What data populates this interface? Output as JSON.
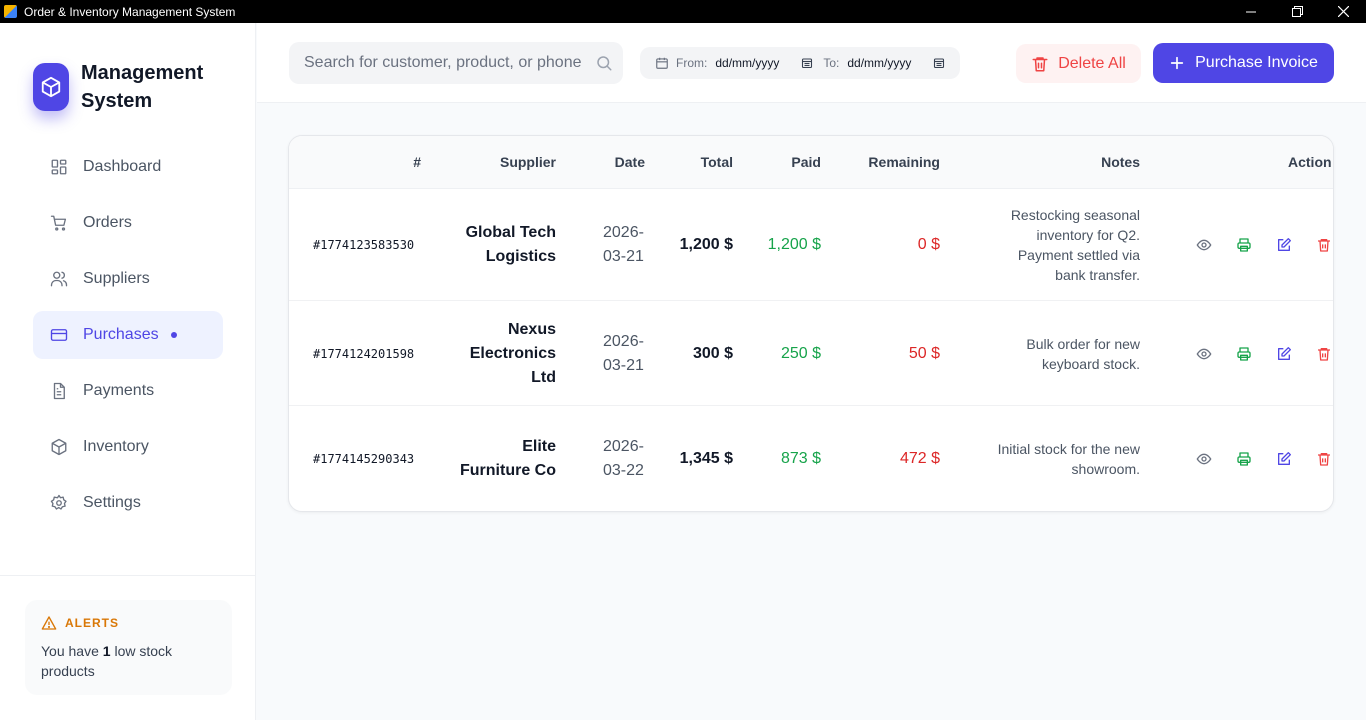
{
  "window": {
    "title": "Order & Inventory Management System"
  },
  "brand": {
    "title": "Management System"
  },
  "nav": [
    {
      "label": "Dashboard",
      "icon": "grid-icon"
    },
    {
      "label": "Orders",
      "icon": "cart-icon"
    },
    {
      "label": "Suppliers",
      "icon": "users-icon"
    },
    {
      "label": "Purchases",
      "icon": "credit-card-icon",
      "active": true
    },
    {
      "label": "Payments",
      "icon": "document-icon"
    },
    {
      "label": "Inventory",
      "icon": "box-icon"
    },
    {
      "label": "Settings",
      "icon": "gear-icon"
    }
  ],
  "alerts": {
    "heading": "ALERTS",
    "prefix": "You have",
    "count": "1",
    "suffix": "low stock products"
  },
  "search": {
    "placeholder": "Search for customer, product, or phone",
    "value": ""
  },
  "dates": {
    "from_label": "From:",
    "from_value": "dd/mm/yyyy",
    "to_label": "To:",
    "to_value": "dd/mm/yyyy"
  },
  "toolbar": {
    "delete_all_label": "Delete All",
    "purchase_invoice_label": "Purchase Invoice"
  },
  "table": {
    "headers": {
      "id": "#",
      "supplier": "Supplier",
      "date": "Date",
      "total": "Total",
      "paid": "Paid",
      "remaining": "Remaining",
      "notes": "Notes",
      "actions": "Action"
    },
    "rows": [
      {
        "id": "#1774123583530",
        "supplier": "Global Tech Logistics",
        "date": "2026-03-21",
        "total": "1,200 $",
        "paid": "1,200 $",
        "remaining": "0 $",
        "notes": "Restocking seasonal inventory for Q2. Payment settled via bank transfer."
      },
      {
        "id": "#1774124201598",
        "supplier": "Nexus Electronics Ltd",
        "date": "2026-03-21",
        "total": "300 $",
        "paid": "250 $",
        "remaining": "50 $",
        "notes": "Bulk order for new keyboard stock."
      },
      {
        "id": "#1774145290343",
        "supplier": "Elite Furniture Co",
        "date": "2026-03-22",
        "total": "1,345 $",
        "paid": "873 $",
        "remaining": "472 $",
        "notes": "Initial stock for the new showroom."
      }
    ]
  },
  "colors": {
    "accent": "#4f46e5",
    "danger": "#dc2626",
    "success": "#16a34a",
    "warning": "#d97706"
  }
}
